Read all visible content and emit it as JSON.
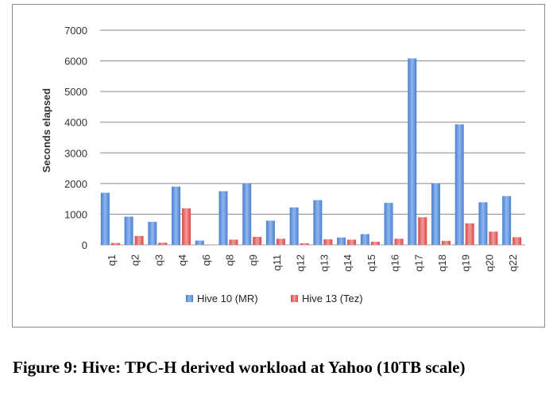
{
  "chart_data": {
    "type": "bar",
    "title": "",
    "xlabel": "",
    "ylabel": "Seconds elapsed",
    "ylim": [
      0,
      7000
    ],
    "yticks": [
      0,
      1000,
      2000,
      3000,
      4000,
      5000,
      6000,
      7000
    ],
    "grid": true,
    "legend": "bottom",
    "categories": [
      "q1",
      "q2",
      "q3",
      "q4",
      "q6",
      "q8",
      "q9",
      "q11",
      "q12",
      "q13",
      "q14",
      "q15",
      "q16",
      "q17",
      "q18",
      "q19",
      "q20",
      "q22"
    ],
    "series": [
      {
        "name": "Hive 10 (MR)",
        "color": "#5b8fdc",
        "values": [
          1700,
          920,
          750,
          1900,
          140,
          1750,
          2000,
          790,
          1220,
          1460,
          240,
          350,
          1370,
          6080,
          2010,
          3930,
          1390,
          1590
        ]
      },
      {
        "name": "Hive 13 (Tez)",
        "color": "#e05a5a",
        "values": [
          60,
          290,
          70,
          1190,
          10,
          170,
          260,
          200,
          50,
          180,
          170,
          100,
          200,
          900,
          130,
          700,
          430,
          250
        ]
      }
    ]
  },
  "caption": "Figure 9: Hive: TPC-H derived workload at Yahoo (10TB scale)"
}
